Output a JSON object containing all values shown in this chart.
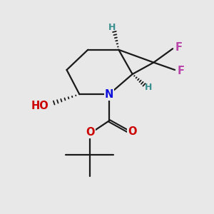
{
  "bg_color": "#e8e8e8",
  "bond_color": "#1a1a1a",
  "N_color": "#1010dd",
  "O_color": "#cc0000",
  "F_color": "#bb44aa",
  "H_color": "#3a9090",
  "figsize": [
    3.0,
    3.0
  ],
  "dpi": 100,
  "xlim": [
    0,
    10
  ],
  "ylim": [
    0,
    10
  ]
}
